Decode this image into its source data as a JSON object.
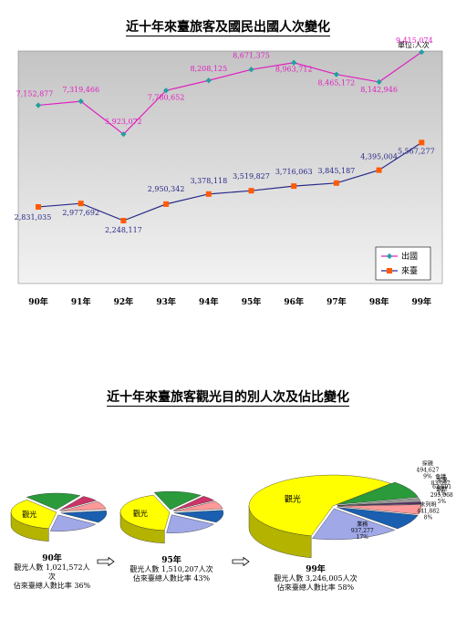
{
  "chart_data": [
    {
      "type": "line",
      "title": "近十年來臺旅客及國民出國人次變化",
      "unit_label": "單位:人次",
      "categories": [
        "90年",
        "91年",
        "92年",
        "93年",
        "94年",
        "95年",
        "96年",
        "97年",
        "98年",
        "99年"
      ],
      "series": [
        {
          "name": "出國",
          "color": "#e020c0",
          "values": [
            7152877,
            7319466,
            5923072,
            7780652,
            8208125,
            8671375,
            8963712,
            8465172,
            8142946,
            9415074
          ],
          "labels": [
            "7,152,877",
            "7,319,466",
            "5,923,072",
            "7,780,652",
            "8,208,125",
            "8,671,375",
            "8,963,712",
            "8,465,172",
            "8,142,946",
            "9,415,074"
          ]
        },
        {
          "name": "來臺",
          "color": "#2a2a8a",
          "marker_color": "#ff5a00",
          "values": [
            2831035,
            2977692,
            2248117,
            2950342,
            3378118,
            3519827,
            3716063,
            3845187,
            4395004,
            5567277
          ],
          "labels": [
            "2,831,035",
            "2,977,692",
            "2,248,117",
            "2,950,342",
            "3,378,118",
            "3,519,827",
            "3,716,063",
            "3,845,187",
            "4,395,004",
            "5,567,277"
          ]
        }
      ],
      "ylim": [
        0,
        10000000
      ],
      "legend_position": "bottom-right"
    },
    {
      "type": "pie",
      "title": "近十年來臺旅客觀光目的別人次及佔比變化",
      "pies": [
        {
          "year": "90年",
          "caption1": "觀光人數 1,021,572人次",
          "caption2": "佔來臺總人數比率 36%",
          "inner_label": "觀光",
          "slices": [
            {
              "share": 36,
              "color": "#ffff00"
            },
            {
              "share": 20,
              "color": "#2a9a3a"
            },
            {
              "share": 6,
              "color": "#cc3366"
            },
            {
              "share": 8,
              "color": "#ff9999"
            },
            {
              "share": 12,
              "color": "#1a5fb0"
            },
            {
              "share": 18,
              "color": "#a0a8e8"
            }
          ]
        },
        {
          "year": "95年",
          "caption1": "觀光人數 1,510,207人次",
          "caption2": "佔來臺總人數比率 43%",
          "inner_label": "觀光",
          "slices": [
            {
              "share": 43,
              "color": "#ffff00"
            },
            {
              "share": 16,
              "color": "#2a9a3a"
            },
            {
              "share": 5,
              "color": "#cc3366"
            },
            {
              "share": 7,
              "color": "#ff9999"
            },
            {
              "share": 11,
              "color": "#1a5fb0"
            },
            {
              "share": 18,
              "color": "#a0a8e8"
            }
          ]
        },
        {
          "year": "99年",
          "caption1": "觀光人數 3,246,005人次",
          "caption2": "佔來臺總人數比率 58%",
          "inner_label": "觀光",
          "slices": [
            {
              "share": 58,
              "color": "#ffff00"
            },
            {
              "share": 9,
              "color": "#2a9a3a",
              "label": "探親\n494,627\n9%"
            },
            {
              "share": 2,
              "color": "#999999",
              "label": "會議\n83,097\n2%"
            },
            {
              "share": 1,
              "color": "#5a2a70",
              "label": "求學\n62,691\n1%"
            },
            {
              "share": 5,
              "color": "#ff9999",
              "label": "其他\n295,068\n5%"
            },
            {
              "share": 8,
              "color": "#1a5fb0",
              "label": "未列明\n441,882\n8%"
            },
            {
              "share": 17,
              "color": "#a0a8e8",
              "label": "業務\n937,277\n17%"
            }
          ]
        }
      ]
    }
  ]
}
